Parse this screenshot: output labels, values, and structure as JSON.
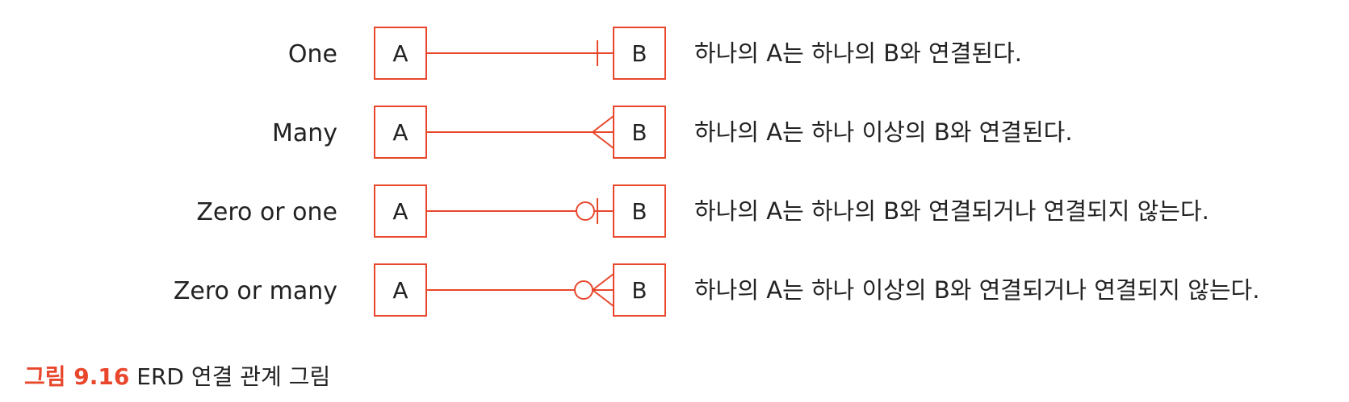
{
  "accent_color": "#e8472c",
  "rows": [
    {
      "label": "One",
      "left_entity": "A",
      "right_entity": "B",
      "symbol": "one",
      "description": "하나의 A는 하나의 B와 연결된다."
    },
    {
      "label": "Many",
      "left_entity": "A",
      "right_entity": "B",
      "symbol": "many",
      "description": "하나의 A는 하나 이상의 B와 연결된다."
    },
    {
      "label": "Zero or one",
      "left_entity": "A",
      "right_entity": "B",
      "symbol": "zero-or-one",
      "description": "하나의 A는 하나의 B와 연결되거나 연결되지 않는다."
    },
    {
      "label": "Zero or many",
      "left_entity": "A",
      "right_entity": "B",
      "symbol": "zero-or-many",
      "description": "하나의 A는 하나 이상의 B와 연결되거나 연결되지 않는다."
    }
  ],
  "caption": {
    "number": "그림 9.16",
    "title": "ERD 연결 관계 그림"
  }
}
